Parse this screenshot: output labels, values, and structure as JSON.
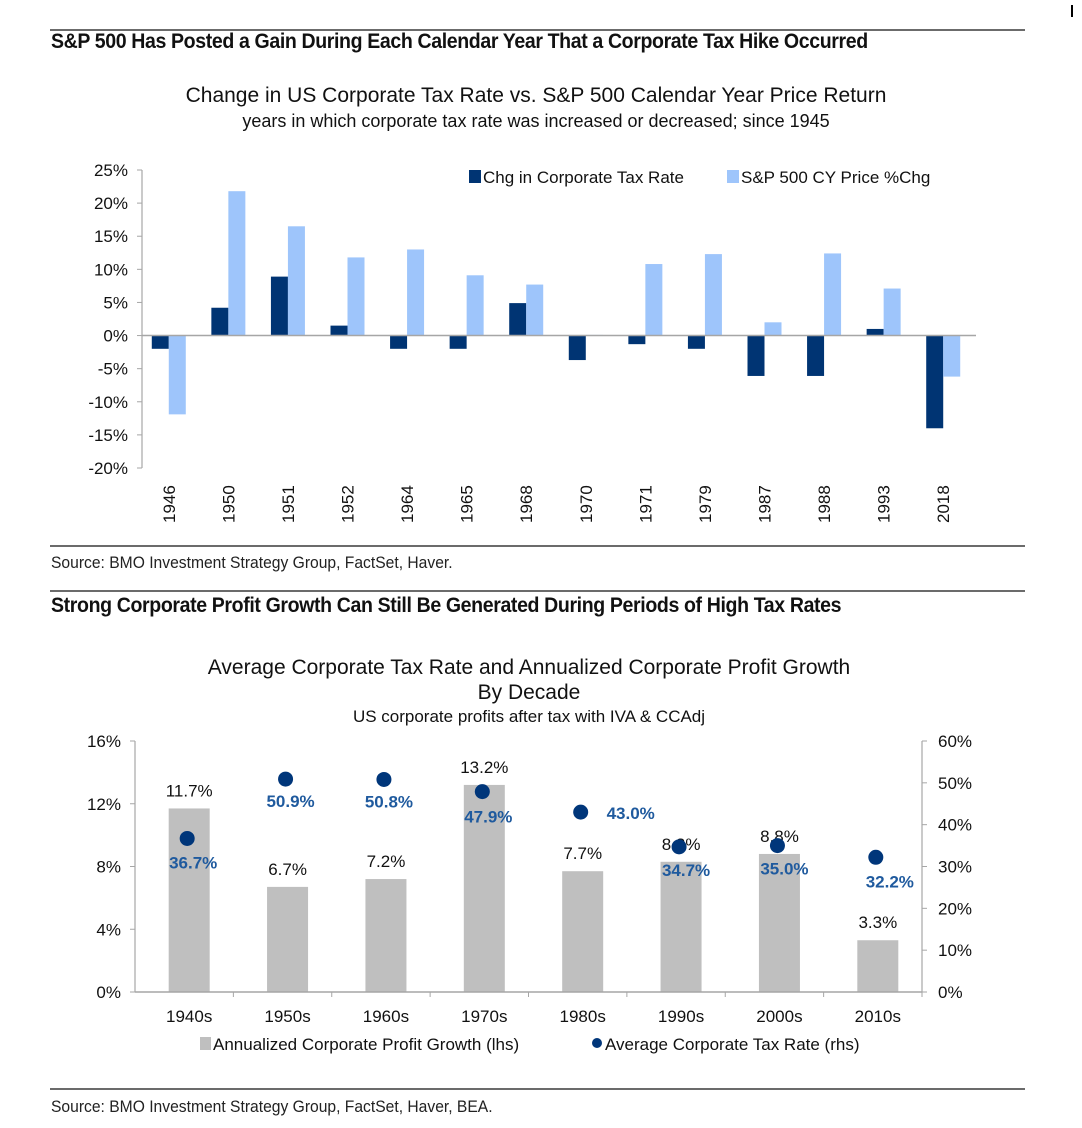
{
  "sections": [
    {
      "heading": "S&P 500 Has Posted a Gain During Each Calendar Year That a Corporate Tax Hike Occurred",
      "source": "Source: BMO Investment Strategy Group, FactSet, Haver."
    },
    {
      "heading": "Strong Corporate Profit Growth Can Still Be Generated During Periods of High Tax Rates",
      "source": "Source: BMO Investment Strategy Group, FactSet, Haver, BEA."
    }
  ],
  "colors": {
    "tax_change": "#003473",
    "sp500": "#9ec5fb",
    "profit_growth": "#bfbfbf",
    "tax_rate_dot": "#00367a",
    "tax_rate_label": "#1f5a9e",
    "axis": "#a6a6a6"
  },
  "chart_data": [
    {
      "type": "bar",
      "title": "Change in US Corporate Tax Rate vs. S&P 500 Calendar Year Price Return",
      "subtitle": "years in which corporate tax rate was increased or decreased; since 1945",
      "xlabel": "",
      "ylabel": "",
      "ylim": [
        -20,
        25
      ],
      "yticks": [
        25,
        20,
        15,
        10,
        5,
        0,
        -5,
        -10,
        -15,
        -20
      ],
      "ytick_labels": [
        "25%",
        "20%",
        "15%",
        "10%",
        "5%",
        "0%",
        "-5%",
        "-10%",
        "-15%",
        "-20%"
      ],
      "legend_position": "top-right",
      "grid": false,
      "categories": [
        "1946",
        "1950",
        "1951",
        "1952",
        "1964",
        "1965",
        "1968",
        "1970",
        "1971",
        "1979",
        "1987",
        "1988",
        "1993",
        "2018"
      ],
      "series": [
        {
          "name": "Chg in Corporate Tax Rate",
          "values": [
            -2.0,
            4.2,
            8.9,
            1.5,
            -2.0,
            -2.0,
            4.9,
            -3.7,
            -1.3,
            -2.0,
            -6.1,
            -6.1,
            1.0,
            -14.0
          ]
        },
        {
          "name": "S&P 500 CY Price %Chg",
          "values": [
            -11.9,
            21.8,
            16.5,
            11.8,
            13.0,
            9.1,
            7.7,
            0.1,
            10.8,
            12.3,
            2.0,
            12.4,
            7.1,
            -6.2
          ]
        }
      ]
    },
    {
      "type": "bar",
      "title": "Average Corporate Tax Rate and Annualized Corporate Profit Growth",
      "title_line2": "By Decade",
      "subtitle": "US corporate profits after tax with IVA  & CCAdj",
      "xlabel": "",
      "ylabel_left": "",
      "ylabel_right": "",
      "ylim": [
        0,
        16
      ],
      "y2lim": [
        0,
        60
      ],
      "yticks": [
        0,
        4,
        8,
        12,
        16
      ],
      "ytick_labels": [
        "0%",
        "4%",
        "8%",
        "12%",
        "16%"
      ],
      "y2ticks": [
        0,
        10,
        20,
        30,
        40,
        50,
        60
      ],
      "y2tick_labels": [
        "0%",
        "10%",
        "20%",
        "30%",
        "40%",
        "50%",
        "60%"
      ],
      "legend_position": "bottom",
      "grid": false,
      "categories": [
        "1940s",
        "1950s",
        "1960s",
        "1970s",
        "1980s",
        "1990s",
        "2000s",
        "2010s"
      ],
      "series": [
        {
          "name": "Annualized Corporate Profit Growth (lhs)",
          "kind": "bar",
          "axis": "left",
          "values": [
            11.7,
            6.7,
            7.2,
            13.2,
            7.7,
            8.3,
            8.8,
            3.3
          ],
          "labels": [
            "11.7%",
            "6.7%",
            "7.2%",
            "13.2%",
            "7.7%",
            "8.3%",
            "8.8%",
            "3.3%"
          ]
        },
        {
          "name": "Average Corporate Tax Rate (rhs)",
          "kind": "scatter",
          "axis": "right",
          "values": [
            36.7,
            50.9,
            50.8,
            47.9,
            43.0,
            34.7,
            35.0,
            32.2
          ],
          "labels": [
            "36.7%",
            "50.9%",
            "50.8%",
            "47.9%",
            "43.0%",
            "34.7%",
            "35.0%",
            "32.2%"
          ]
        }
      ]
    }
  ]
}
